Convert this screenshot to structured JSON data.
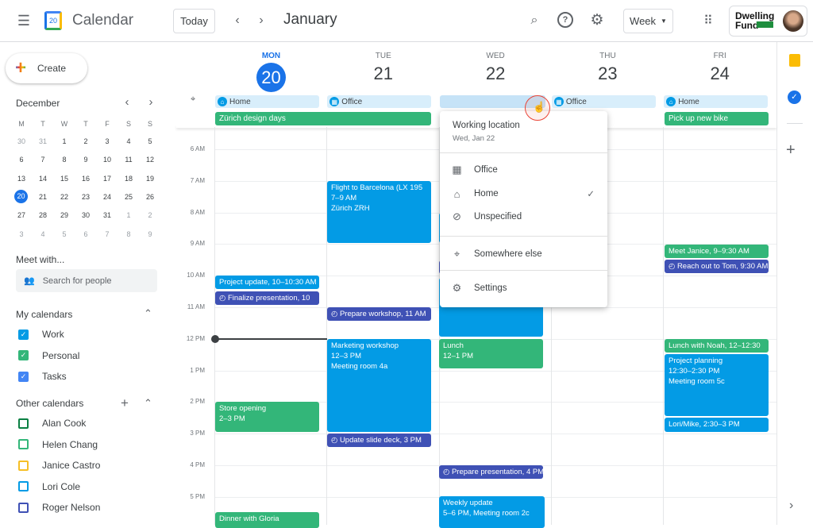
{
  "header": {
    "app_title": "Calendar",
    "logo_day": "20",
    "today": "Today",
    "month": "January",
    "view": "Week",
    "brand_line1": "Dwelling",
    "brand_line2": "Fund"
  },
  "sidebar": {
    "create": "Create",
    "mini_month": "December",
    "weekdays": [
      "M",
      "T",
      "W",
      "T",
      "F",
      "S",
      "S"
    ],
    "mini_days": [
      [
        "30",
        "31",
        "1",
        "2",
        "3",
        "4",
        "5"
      ],
      [
        "6",
        "7",
        "8",
        "9",
        "10",
        "11",
        "12"
      ],
      [
        "13",
        "14",
        "15",
        "16",
        "17",
        "18",
        "19"
      ],
      [
        "20",
        "21",
        "22",
        "23",
        "24",
        "25",
        "26"
      ],
      [
        "27",
        "28",
        "29",
        "30",
        "31",
        "1",
        "2"
      ],
      [
        "3",
        "4",
        "5",
        "6",
        "7",
        "8",
        "9"
      ]
    ],
    "meet_with": "Meet with...",
    "search_placeholder": "Search for people",
    "my_calendars": "My calendars",
    "my": [
      {
        "label": "Work",
        "color": "#039be5"
      },
      {
        "label": "Personal",
        "color": "#33b679"
      },
      {
        "label": "Tasks",
        "color": "#4285f4"
      }
    ],
    "other_calendars": "Other calendars",
    "other": [
      {
        "label": "Alan Cook",
        "color": "#0b8043"
      },
      {
        "label": "Helen Chang",
        "color": "#33b679"
      },
      {
        "label": "Janice Castro",
        "color": "#f6bf26"
      },
      {
        "label": "Lori Cole",
        "color": "#039be5"
      },
      {
        "label": "Roger Nelson",
        "color": "#3f51b5"
      }
    ]
  },
  "days": [
    {
      "name": "MON",
      "num": "20",
      "location": "Home"
    },
    {
      "name": "TUE",
      "num": "21",
      "location": "Office"
    },
    {
      "name": "WED",
      "num": "22",
      "location": ""
    },
    {
      "name": "THU",
      "num": "23",
      "location": "Office"
    },
    {
      "name": "FRI",
      "num": "24",
      "location": "Home"
    }
  ],
  "allday": {
    "mon_tue": "Zürich design days",
    "fri": "Pick up new bike"
  },
  "times": [
    "6 AM",
    "7 AM",
    "8 AM",
    "9 AM",
    "10 AM",
    "11 AM",
    "12 PM",
    "1 PM",
    "2 PM",
    "3 PM",
    "4 PM",
    "5 PM"
  ],
  "events": {
    "project_update": "Project update, 10–10:30 AM",
    "finalize": "Finalize presentation, 10",
    "store": [
      "Store opening",
      "2–3 PM"
    ],
    "dinner": "Dinner with Gloria",
    "flight": [
      "Flight to Barcelona (LX 195",
      "7–9 AM",
      "Zürich ZRH"
    ],
    "prep_workshop": "Prepare workshop, 11 AM",
    "marketing": [
      "Marketing workshop",
      "12–3 PM",
      "Meeting room 4a"
    ],
    "slide_deck": "Update slide deck, 3 PM",
    "lunch": [
      "Lunch",
      "12–1 PM"
    ],
    "prep_presentation": "Prepare presentation, 4 PM",
    "weekly": [
      "Weekly update",
      "5–6 PM, Meeting room 2c"
    ],
    "janice": "Meet Janice, 9–9:30 AM",
    "tom": "Reach out to Tom, 9:30 AM",
    "noah": "Lunch with Noah, 12–12:30",
    "planning": [
      "Project planning",
      "12:30–2:30 PM",
      "Meeting room 5c"
    ],
    "lori": "Lori/Mike, 2:30–3 PM"
  },
  "popup": {
    "title": "Working location",
    "subtitle": "Wed, Jan 22",
    "items": [
      "Office",
      "Home",
      "Unspecified",
      "Somewhere else",
      "Settings"
    ],
    "selected": "Home"
  },
  "colors": {
    "accent": "#1a73e8",
    "event_blue": "#039be5",
    "event_green": "#33b679",
    "task": "#3f51b5"
  }
}
